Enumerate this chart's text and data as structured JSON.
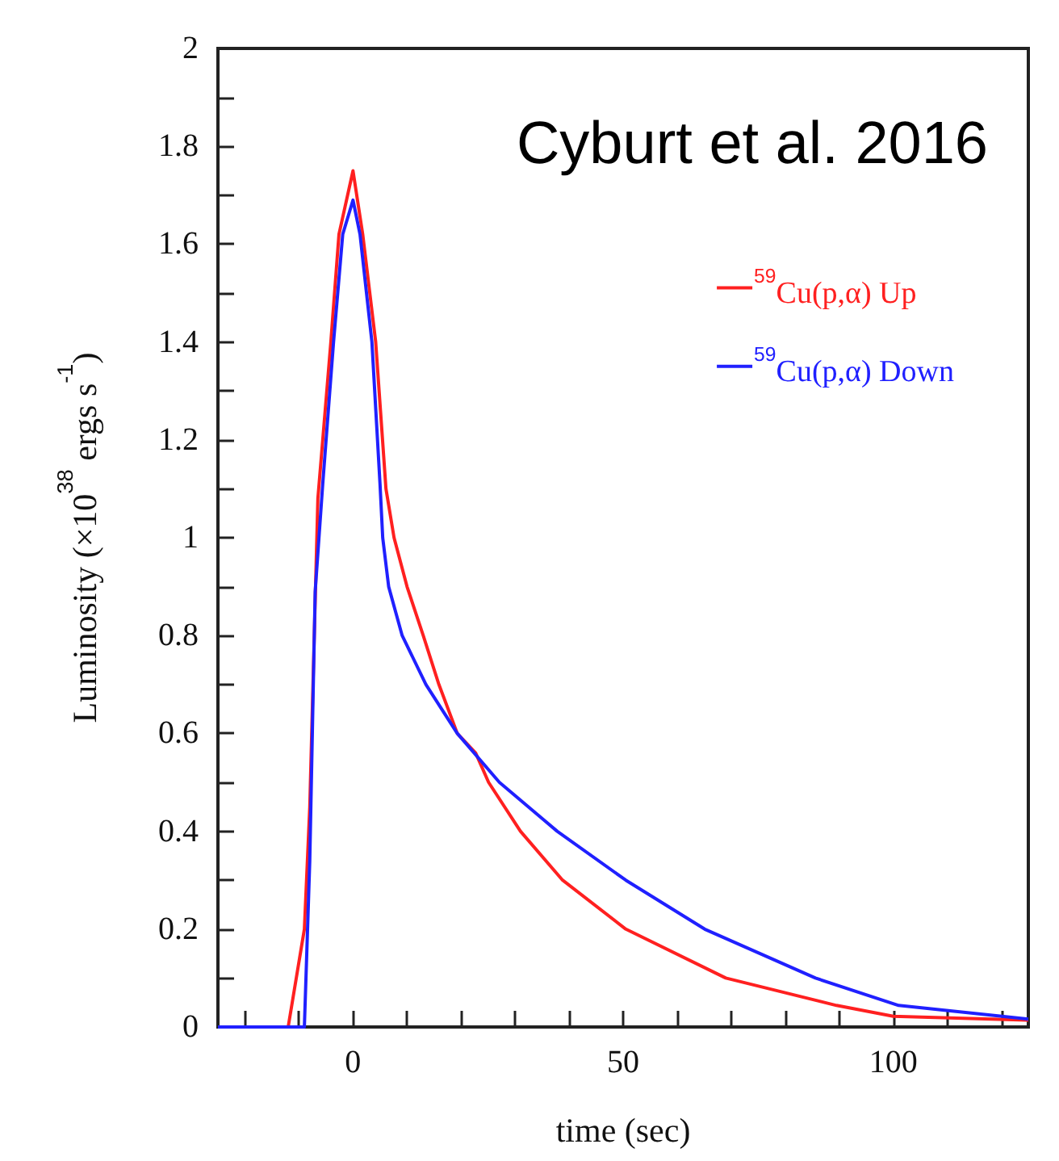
{
  "chart_data": {
    "type": "line",
    "xlabel": "time (sec)",
    "ylabel": "Luminosity (×10$^{38}$ ergs s$^{-1}$)",
    "annotations": [
      "Cyburt et al. 2016"
    ],
    "xlim": [
      -25,
      125
    ],
    "ylim": [
      0,
      2
    ],
    "xticks": [
      {
        "value": -20,
        "label": null
      },
      {
        "value": -10,
        "label": null
      },
      0,
      {
        "value": 10,
        "label": null
      },
      {
        "value": 20,
        "label": null
      },
      {
        "value": 30,
        "label": null
      },
      {
        "value": 40,
        "label": null
      },
      50,
      {
        "value": 60,
        "label": null
      },
      {
        "value": 70,
        "label": null
      },
      {
        "value": 80,
        "label": null
      },
      {
        "value": 90,
        "label": null
      },
      100,
      {
        "value": 110,
        "label": null
      },
      {
        "value": 120,
        "label": null
      }
    ],
    "yticks": [
      0,
      {
        "value": 0.1,
        "label": null
      },
      0.2,
      {
        "value": 0.3,
        "label": null
      },
      0.4,
      {
        "value": 0.5,
        "label": null
      },
      0.6,
      {
        "value": 0.7,
        "label": null
      },
      0.8,
      {
        "value": 0.9,
        "label": null
      },
      1,
      {
        "value": 1.1,
        "label": null
      },
      1.2,
      {
        "value": 1.3,
        "label": null
      },
      1.4,
      {
        "value": 1.5,
        "label": null
      },
      1.6,
      {
        "value": 1.7,
        "label": null
      },
      1.8,
      {
        "value": 1.9,
        "label": null
      },
      2
    ],
    "grid": false,
    "legend": "top right",
    "marker": "none",
    "line_style": "solid",
    "series": [
      {
        "name": "$^{59}$Cu(p,α) Up",
        "color": "#ff2020",
        "x": [
          -25,
          -12,
          -9,
          -8,
          -6.5,
          -4.1,
          -2.6,
          0,
          1.8,
          4.2,
          6.1,
          7.6,
          10,
          13,
          15.9,
          19.3,
          22.7,
          25.1,
          31,
          38.8,
          50.5,
          69,
          89.5,
          100,
          125
        ],
        "values": [
          0,
          0,
          0.2,
          0.45,
          1.08,
          1.4,
          1.62,
          1.75,
          1.62,
          1.4,
          1.1,
          1.0,
          0.9,
          0.8,
          0.7,
          0.6,
          0.56,
          0.5,
          0.4,
          0.3,
          0.2,
          0.1,
          0.044,
          0.022,
          0.014
        ]
      },
      {
        "name": "$^{59}$Cu(p,α) Down",
        "color": "#2020ff",
        "x": [
          -25,
          -9,
          -8,
          -7,
          -5.6,
          -3.6,
          -1.9,
          0,
          1.3,
          3.5,
          5,
          5.5,
          6.6,
          9.1,
          13.5,
          19.3,
          27.1,
          37.8,
          50.5,
          65.1,
          85.6,
          101,
          125
        ],
        "values": [
          0,
          0,
          0.34,
          0.89,
          1.11,
          1.4,
          1.62,
          1.69,
          1.62,
          1.4,
          1.11,
          1.0,
          0.9,
          0.8,
          0.7,
          0.6,
          0.5,
          0.4,
          0.3,
          0.2,
          0.1,
          0.044,
          0.016
        ]
      }
    ]
  }
}
